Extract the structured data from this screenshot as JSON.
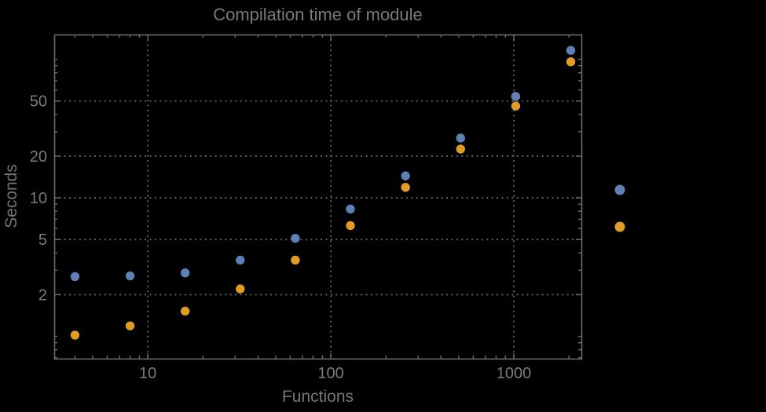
{
  "chart_data": {
    "type": "scatter",
    "title": "Compilation time of module",
    "xlabel": "Functions",
    "ylabel": "Seconds",
    "x_scale": "log",
    "y_scale": "log",
    "xlim": [
      3.08,
      2340
    ],
    "ylim": [
      0.69,
      151
    ],
    "grid": "dotted-at-major-ticks",
    "legend_position": "right-center",
    "x": [
      4,
      8,
      16,
      32,
      64,
      128,
      256,
      512,
      1024,
      2048
    ],
    "series": [
      {
        "marker": "blue-dot",
        "color": "#5E81B5",
        "values": [
          2.7,
          2.73,
          2.87,
          3.55,
          5.1,
          8.3,
          14.4,
          27,
          54,
          116
        ]
      },
      {
        "marker": "orange-dot",
        "color": "#E09C24",
        "values": [
          1.02,
          1.19,
          1.52,
          2.2,
          3.55,
          6.3,
          11.9,
          22.5,
          46,
          96
        ]
      }
    ],
    "x_ticks": {
      "major": [
        {
          "value": 10,
          "label": "10"
        },
        {
          "value": 100,
          "label": "100"
        },
        {
          "value": 1000,
          "label": "1000"
        }
      ],
      "minor": [
        4,
        5,
        6,
        7,
        8,
        9,
        20,
        30,
        40,
        50,
        60,
        70,
        80,
        90,
        200,
        300,
        400,
        500,
        600,
        700,
        800,
        900,
        2000
      ]
    },
    "y_ticks": {
      "major": [
        {
          "value": 2,
          "label": "2"
        },
        {
          "value": 5,
          "label": "5"
        },
        {
          "value": 10,
          "label": "10"
        },
        {
          "value": 20,
          "label": "20"
        },
        {
          "value": 50,
          "label": "50"
        }
      ],
      "minor": [
        0.7,
        0.8,
        0.9,
        1,
        3,
        4,
        6,
        7,
        8,
        9,
        30,
        40,
        60,
        70,
        80,
        90,
        100
      ]
    },
    "legend": [
      {
        "marker": "blue-dot",
        "color": "#5E81B5",
        "label": ""
      },
      {
        "marker": "orange-dot",
        "color": "#E09C24",
        "label": ""
      }
    ]
  },
  "colors": {
    "background": "#000000",
    "frame": "#6b6b6b",
    "gridline": "#6f6f6f",
    "tick_text": "#7a7a7a",
    "series_blue": "#5E81B5",
    "series_orange": "#E09C24"
  }
}
